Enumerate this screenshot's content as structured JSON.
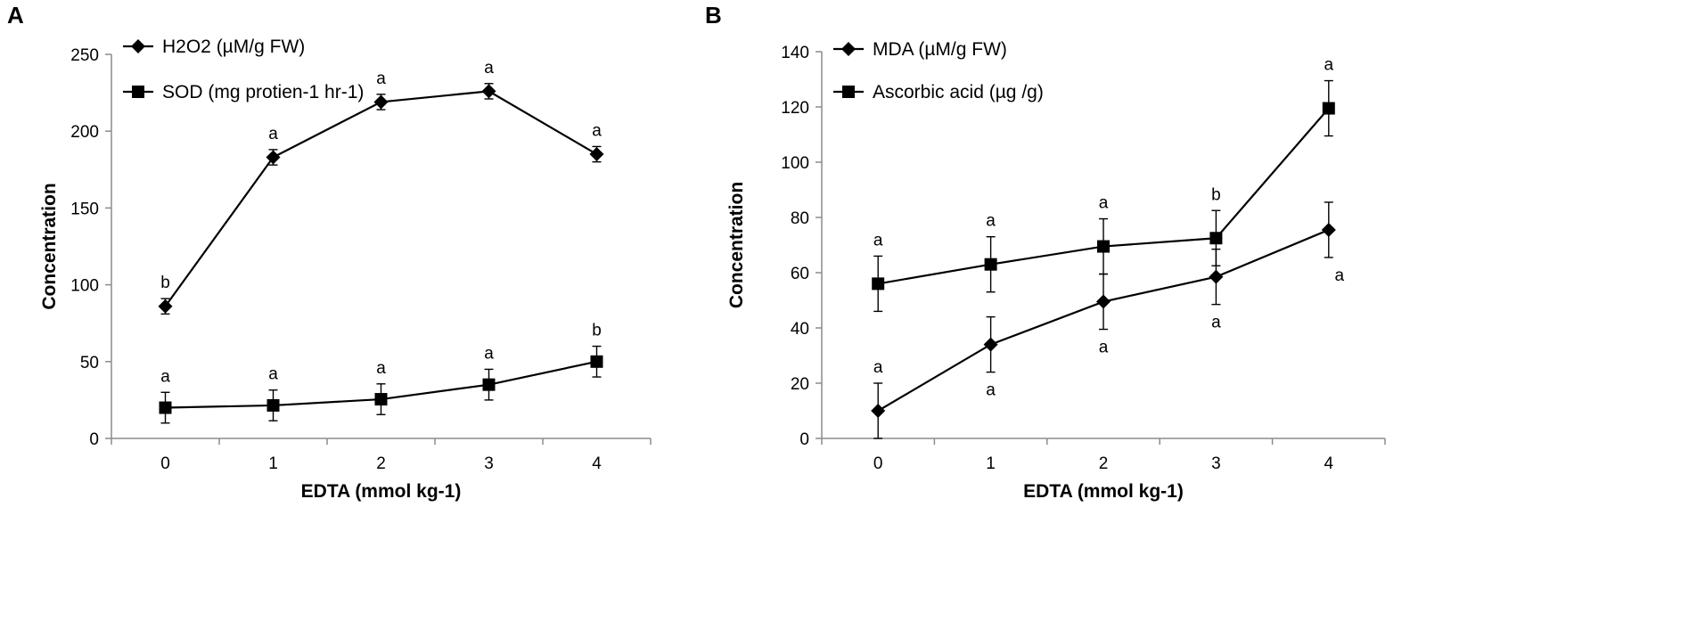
{
  "chart_data": [
    {
      "panel": "A",
      "type": "line",
      "title": "",
      "xlabel": "EDTA (mmol kg-1)",
      "ylabel": "Concentration",
      "categories": [
        "0",
        "1",
        "2",
        "3",
        "4"
      ],
      "ylim": [
        0,
        250
      ],
      "yticks": [
        0,
        50,
        100,
        150,
        200,
        250
      ],
      "grid": false,
      "legend_position": "top-left",
      "series": [
        {
          "name": "H2O2 (µM/g FW)",
          "marker": "diamond",
          "values": [
            86,
            183,
            219,
            226,
            185
          ],
          "errors": [
            5,
            5,
            5,
            5,
            5
          ],
          "annotations": [
            "b",
            "a",
            "a",
            "a",
            "a"
          ],
          "annotation_position": [
            "above",
            "above",
            "above",
            "above",
            "above"
          ]
        },
        {
          "name": "SOD (mg protien-1 hr-1)",
          "marker": "square",
          "values": [
            20,
            21.5,
            25.5,
            35,
            50
          ],
          "errors": [
            10,
            10,
            10,
            10,
            10
          ],
          "annotations": [
            "a",
            "a",
            "a",
            "a",
            "b"
          ],
          "annotation_position": [
            "above",
            "above",
            "above",
            "above",
            "above"
          ]
        }
      ]
    },
    {
      "panel": "B",
      "type": "line",
      "title": "",
      "xlabel": "EDTA (mmol kg-1)",
      "ylabel": "Concentration",
      "categories": [
        "0",
        "1",
        "2",
        "3",
        "4"
      ],
      "ylim": [
        0,
        140
      ],
      "yticks": [
        0,
        20,
        40,
        60,
        80,
        100,
        120,
        140
      ],
      "grid": false,
      "legend_position": "top-left",
      "series": [
        {
          "name": "MDA (µM/g FW)",
          "marker": "diamond",
          "values": [
            10,
            34,
            49.5,
            58.5,
            75.5
          ],
          "errors": [
            10,
            10,
            10,
            10,
            10
          ],
          "annotations": [
            "a",
            "a",
            "a",
            "a",
            "a"
          ],
          "annotation_position": [
            "above",
            "below",
            "below",
            "below",
            "below"
          ]
        },
        {
          "name": "Ascorbic acid (µg /g)",
          "marker": "square",
          "values": [
            56,
            63,
            69.5,
            72.5,
            119.5
          ],
          "errors": [
            10,
            10,
            10,
            10,
            10
          ],
          "annotations": [
            "a",
            "a",
            "a",
            "b",
            "a"
          ],
          "annotation_position": [
            "above",
            "above",
            "above",
            "above",
            "above"
          ]
        }
      ]
    }
  ]
}
